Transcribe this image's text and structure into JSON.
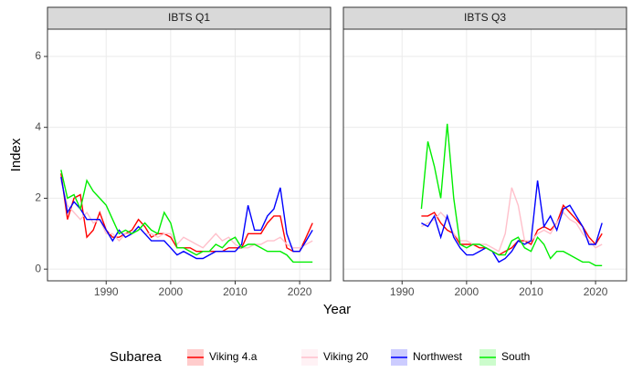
{
  "chart_data": [
    {
      "type": "line",
      "title": "IBTS Q1",
      "x": [
        1983,
        1984,
        1985,
        1986,
        1987,
        1988,
        1989,
        1990,
        1991,
        1992,
        1993,
        1994,
        1995,
        1996,
        1997,
        1998,
        1999,
        2000,
        2001,
        2002,
        2003,
        2004,
        2005,
        2006,
        2007,
        2008,
        2009,
        2010,
        2011,
        2012,
        2013,
        2014,
        2015,
        2016,
        2017,
        2018,
        2019,
        2020,
        2021,
        2022
      ],
      "series": [
        {
          "name": "Viking 4.a",
          "color": "#ff0000",
          "values": [
            2.7,
            1.4,
            2.0,
            2.1,
            0.9,
            1.1,
            1.6,
            1.1,
            0.9,
            0.9,
            1.0,
            1.1,
            1.4,
            1.2,
            0.9,
            1.0,
            1.0,
            0.9,
            0.6,
            0.6,
            0.6,
            0.5,
            0.5,
            0.5,
            0.5,
            0.5,
            0.6,
            0.6,
            0.6,
            1.0,
            1.0,
            1.0,
            1.3,
            1.5,
            1.5,
            0.6,
            0.5,
            0.5,
            0.9,
            1.3
          ]
        },
        {
          "name": "Viking 20",
          "color": "#ffc0cb",
          "values": [
            2.5,
            1.8,
            1.6,
            1.4,
            1.6,
            1.3,
            1.4,
            1.0,
            1.0,
            0.8,
            1.0,
            1.0,
            1.2,
            1.0,
            1.0,
            0.9,
            1.0,
            1.0,
            0.7,
            0.9,
            0.8,
            0.7,
            0.6,
            0.8,
            1.0,
            0.8,
            0.9,
            0.7,
            0.6,
            0.6,
            0.7,
            0.7,
            0.8,
            0.8,
            0.9,
            0.7,
            0.6,
            0.6,
            0.7,
            0.8
          ]
        },
        {
          "name": "Northwest",
          "color": "#0000ff",
          "values": [
            2.6,
            1.6,
            1.9,
            1.7,
            1.4,
            1.4,
            1.4,
            1.1,
            0.8,
            1.1,
            0.9,
            1.0,
            1.2,
            1.0,
            0.8,
            0.8,
            0.8,
            0.6,
            0.4,
            0.5,
            0.4,
            0.3,
            0.3,
            0.4,
            0.5,
            0.5,
            0.5,
            0.5,
            0.7,
            1.8,
            1.1,
            1.1,
            1.5,
            1.7,
            2.3,
            1.0,
            0.5,
            0.5,
            0.8,
            1.1
          ]
        },
        {
          "name": "South",
          "color": "#00ee00",
          "values": [
            2.8,
            2.0,
            2.1,
            1.7,
            2.5,
            2.2,
            2.0,
            1.8,
            1.4,
            1.0,
            1.1,
            1.0,
            1.1,
            1.3,
            1.1,
            1.0,
            1.6,
            1.3,
            0.6,
            0.6,
            0.5,
            0.4,
            0.5,
            0.5,
            0.7,
            0.6,
            0.8,
            0.9,
            0.6,
            0.7,
            0.7,
            0.6,
            0.5,
            0.5,
            0.5,
            0.4,
            0.2,
            0.2,
            0.2,
            0.2
          ]
        }
      ],
      "xlim": [
        1980.9,
        2024.8
      ],
      "xticks": [
        1990,
        2000,
        2010,
        2020
      ],
      "ylim": [
        -0.33,
        6.77
      ],
      "yticks": [
        0,
        2,
        4,
        6
      ],
      "grid": true
    },
    {
      "type": "line",
      "title": "IBTS Q3",
      "x": [
        1993,
        1994,
        1995,
        1996,
        1997,
        1998,
        1999,
        2000,
        2001,
        2002,
        2003,
        2004,
        2005,
        2006,
        2007,
        2008,
        2009,
        2010,
        2011,
        2012,
        2013,
        2014,
        2015,
        2016,
        2017,
        2018,
        2019,
        2020,
        2021
      ],
      "series": [
        {
          "name": "Viking 4.a",
          "color": "#ff0000",
          "values": [
            1.5,
            1.5,
            1.6,
            1.3,
            1.1,
            1.0,
            0.7,
            0.7,
            0.7,
            0.6,
            0.6,
            0.5,
            0.4,
            0.5,
            0.6,
            0.8,
            0.8,
            0.7,
            1.1,
            1.2,
            1.1,
            1.3,
            1.8,
            1.6,
            1.4,
            1.2,
            0.9,
            0.7,
            1.0
          ]
        },
        {
          "name": "Viking 20",
          "color": "#ffc0cb",
          "values": [
            1.2,
            1.3,
            1.4,
            1.6,
            1.4,
            1.0,
            0.8,
            0.8,
            0.7,
            0.7,
            0.7,
            0.6,
            0.5,
            1.0,
            2.3,
            1.8,
            0.8,
            0.8,
            1.0,
            1.1,
            1.0,
            1.3,
            1.6,
            1.4,
            1.3,
            1.0,
            0.8,
            0.6,
            0.7
          ]
        },
        {
          "name": "Northwest",
          "color": "#0000ff",
          "values": [
            1.3,
            1.2,
            1.5,
            0.9,
            1.5,
            0.9,
            0.6,
            0.4,
            0.4,
            0.5,
            0.6,
            0.5,
            0.2,
            0.3,
            0.5,
            0.8,
            0.7,
            0.8,
            2.5,
            1.2,
            1.5,
            1.1,
            1.7,
            1.8,
            1.5,
            1.2,
            0.7,
            0.7,
            1.3
          ]
        },
        {
          "name": "South",
          "color": "#00ee00",
          "values": [
            1.7,
            3.6,
            2.9,
            2.0,
            4.1,
            2.0,
            0.7,
            0.6,
            0.7,
            0.7,
            0.6,
            0.5,
            0.4,
            0.4,
            0.8,
            0.9,
            0.6,
            0.5,
            0.9,
            0.7,
            0.3,
            0.5,
            0.5,
            0.4,
            0.3,
            0.2,
            0.2,
            0.1,
            0.1
          ]
        }
      ],
      "xlim": [
        1980.9,
        2024.8
      ],
      "xticks": [
        1990,
        2000,
        2010,
        2020
      ],
      "ylim": [
        -0.33,
        6.77
      ],
      "yticks": [
        0,
        2,
        4,
        6
      ],
      "grid": true
    }
  ],
  "axis_labels": {
    "x": "Year",
    "y": "Index"
  },
  "legend": {
    "title": "Subarea"
  }
}
